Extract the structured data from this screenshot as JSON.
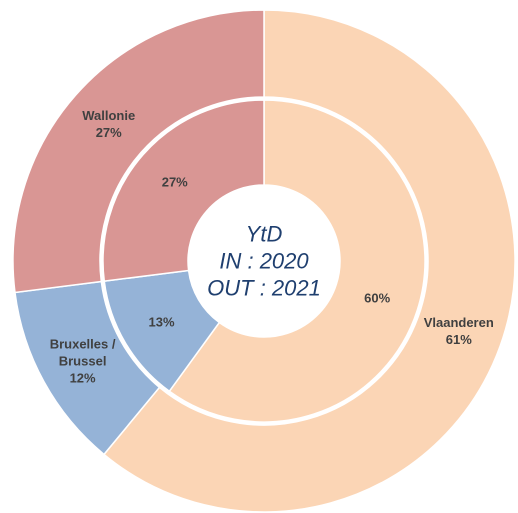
{
  "chart_data": {
    "type": "donut",
    "categories": [
      "Vlaanderen",
      "Bruxelles / Brussel",
      "Wallonie"
    ],
    "colors": [
      "#fbd5b5",
      "#95b3d7",
      "#d99694"
    ],
    "series": [
      {
        "values": [
          60,
          13,
          27
        ],
        "value_labels": [
          "60%",
          "13%",
          "27%"
        ]
      },
      {
        "values": [
          61,
          12,
          27
        ],
        "value_labels": [
          "61%",
          "12%",
          "27%"
        ]
      }
    ],
    "center_text": [
      "YtD",
      "IN : 2020",
      "OUT : 2021"
    ]
  }
}
